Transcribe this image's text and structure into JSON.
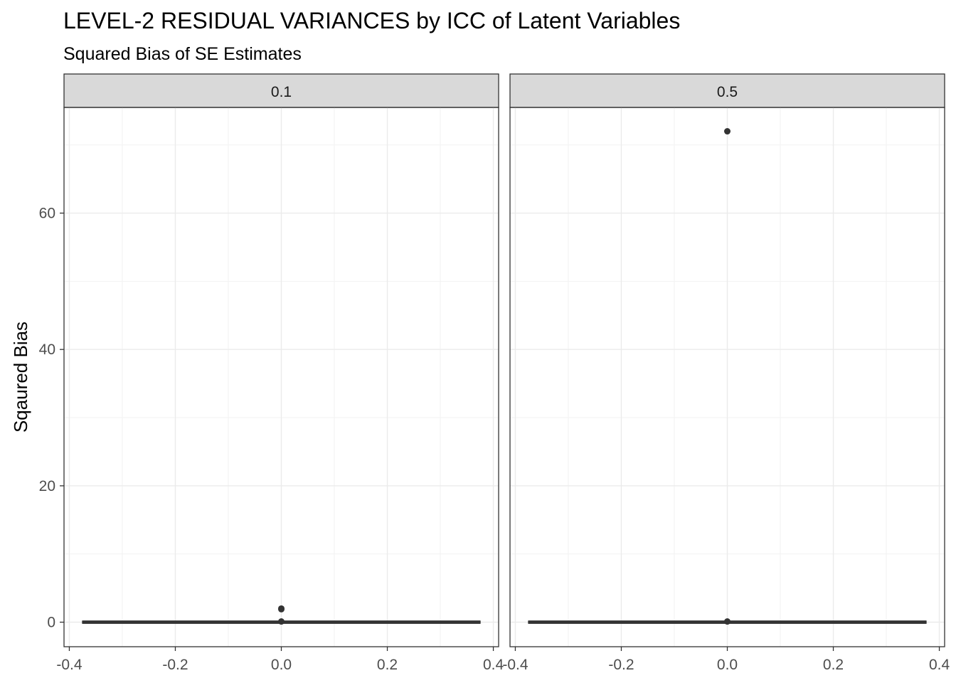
{
  "chart_data": {
    "type": "boxplot",
    "title": "LEVEL-2 RESIDUAL VARIANCES by ICC of Latent Variables",
    "subtitle": "Squared Bias of SE Estimates",
    "ylabel": "Sqaured Bias",
    "xlabel": "",
    "facets": [
      "0.1",
      "0.5"
    ],
    "xlim": [
      -0.41,
      0.41
    ],
    "ylim": [
      -3.6,
      75.5
    ],
    "x_ticks": [
      -0.4,
      -0.2,
      0.0,
      0.2,
      0.4
    ],
    "x_tick_labels": [
      "-0.4",
      "-0.2",
      "0.0",
      "0.2",
      "0.4"
    ],
    "y_ticks": [
      0,
      20,
      40,
      60
    ],
    "y_tick_labels": [
      "0",
      "20",
      "40",
      "60"
    ],
    "grid": true,
    "panels": [
      {
        "facet": "0.1",
        "box": {
          "xmin": -0.375,
          "xmax": 0.375,
          "q1": 0,
          "median": 0,
          "q3": 0
        },
        "outliers": [
          {
            "x": 0,
            "y": 2.0
          },
          {
            "x": 0,
            "y": 1.9
          },
          {
            "x": 0,
            "y": 0.1
          }
        ]
      },
      {
        "facet": "0.5",
        "box": {
          "xmin": -0.375,
          "xmax": 0.375,
          "q1": 0,
          "median": 0,
          "q3": 0
        },
        "outliers": [
          {
            "x": 0,
            "y": 72.0
          },
          {
            "x": 0,
            "y": 0.1
          }
        ]
      }
    ]
  }
}
